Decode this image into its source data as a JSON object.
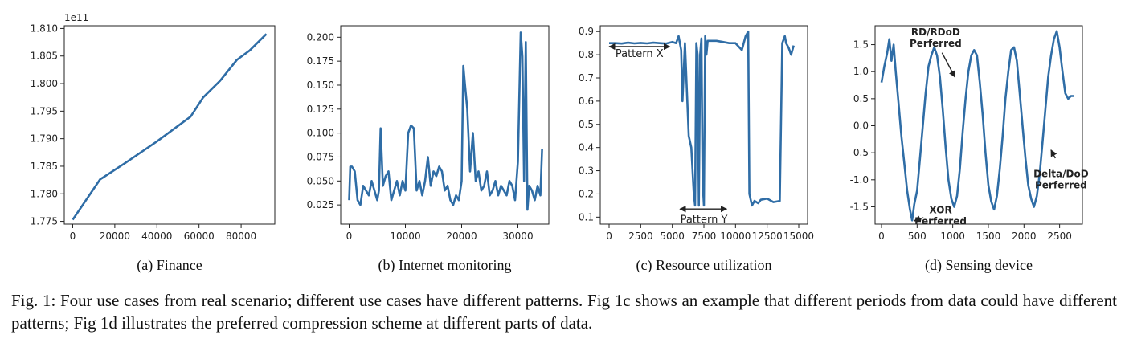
{
  "caption": "Fig. 1: Four use cases from real scenario; different use cases have different patterns. Fig 1c shows an example that different periods from data could have different patterns; Fig 1d illustrates the preferred compression scheme at different parts of data.",
  "line_color": "#2f6da6",
  "chart_data": [
    {
      "type": "line",
      "subcaption": "(a) Finance",
      "offset_label": "1e11",
      "xlim": [
        -4000,
        96000
      ],
      "ylim": [
        1.7745,
        1.8105
      ],
      "xticks": [
        0,
        20000,
        40000,
        60000,
        80000
      ],
      "yticks": [
        1.775,
        1.78,
        1.785,
        1.79,
        1.795,
        1.8,
        1.805,
        1.81
      ],
      "ytick_decimals": 3,
      "x": [
        0,
        13000,
        25000,
        40000,
        56000,
        62000,
        70000,
        78000,
        84000,
        92000
      ],
      "y": [
        1.7753,
        1.7826,
        1.7856,
        1.7895,
        1.794,
        1.7975,
        1.8005,
        1.8043,
        1.806,
        1.809
      ],
      "annotations": []
    },
    {
      "type": "line",
      "subcaption": "(b) Internet monitoring",
      "xlim": [
        -1500,
        35500
      ],
      "ylim": [
        0.005,
        0.212
      ],
      "xticks": [
        0,
        10000,
        20000,
        30000
      ],
      "yticks": [
        0.025,
        0.05,
        0.075,
        0.1,
        0.125,
        0.15,
        0.175,
        0.2
      ],
      "ytick_decimals": 3,
      "x": [
        0,
        200,
        500,
        1000,
        1500,
        2000,
        2500,
        3000,
        3500,
        4000,
        4500,
        5000,
        5300,
        5600,
        6000,
        6500,
        7000,
        7500,
        8000,
        8500,
        9000,
        9500,
        10000,
        10500,
        11000,
        11500,
        12000,
        12500,
        13000,
        13500,
        14000,
        14500,
        15000,
        15500,
        16000,
        16500,
        17000,
        17500,
        18000,
        18500,
        19000,
        19500,
        20000,
        20300,
        20600,
        21000,
        21500,
        22000,
        22500,
        23000,
        23500,
        24000,
        24500,
        25000,
        25500,
        26000,
        26500,
        27000,
        27500,
        28000,
        28500,
        29000,
        29500,
        30000,
        30500,
        30800,
        31100,
        31400,
        31700,
        32000,
        32500,
        33000,
        33500,
        34000,
        34300
      ],
      "y": [
        0.03,
        0.065,
        0.065,
        0.06,
        0.03,
        0.025,
        0.045,
        0.04,
        0.035,
        0.05,
        0.04,
        0.03,
        0.04,
        0.105,
        0.045,
        0.055,
        0.06,
        0.03,
        0.04,
        0.05,
        0.035,
        0.05,
        0.04,
        0.1,
        0.108,
        0.105,
        0.04,
        0.05,
        0.035,
        0.05,
        0.075,
        0.045,
        0.06,
        0.055,
        0.065,
        0.06,
        0.04,
        0.045,
        0.03,
        0.025,
        0.035,
        0.03,
        0.05,
        0.17,
        0.15,
        0.125,
        0.06,
        0.1,
        0.05,
        0.06,
        0.04,
        0.045,
        0.06,
        0.035,
        0.04,
        0.05,
        0.035,
        0.045,
        0.04,
        0.035,
        0.05,
        0.045,
        0.03,
        0.07,
        0.205,
        0.18,
        0.05,
        0.195,
        0.02,
        0.045,
        0.04,
        0.03,
        0.045,
        0.035,
        0.083
      ],
      "annotations": []
    },
    {
      "type": "line",
      "subcaption": "(c) Resource utilization",
      "xlim": [
        -700,
        15700
      ],
      "ylim": [
        0.07,
        0.925
      ],
      "xticks": [
        0,
        2500,
        5000,
        7500,
        10000,
        12500,
        15000
      ],
      "xtick_labels": [
        "0",
        "2500",
        "5000",
        "7500",
        "10000",
        "12500",
        "15000"
      ],
      "yticks": [
        0.1,
        0.2,
        0.3,
        0.4,
        0.5,
        0.6,
        0.7,
        0.8,
        0.9
      ],
      "ytick_decimals": 1,
      "x": [
        0,
        500,
        1000,
        1500,
        2000,
        2500,
        3000,
        3500,
        4000,
        4500,
        5000,
        5300,
        5500,
        5700,
        5800,
        6000,
        6300,
        6500,
        6700,
        6800,
        6900,
        7000,
        7100,
        7200,
        7300,
        7400,
        7500,
        7600,
        7700,
        7800,
        8000,
        8500,
        9000,
        9500,
        10000,
        10500,
        10800,
        11000,
        11100,
        11300,
        11500,
        11800,
        12000,
        12500,
        13000,
        13500,
        13700,
        13900,
        14000,
        14200,
        14400,
        14600
      ],
      "y": [
        0.85,
        0.85,
        0.848,
        0.852,
        0.849,
        0.851,
        0.849,
        0.852,
        0.85,
        0.848,
        0.855,
        0.85,
        0.88,
        0.82,
        0.6,
        0.85,
        0.45,
        0.4,
        0.2,
        0.15,
        0.85,
        0.8,
        0.15,
        0.8,
        0.87,
        0.25,
        0.15,
        0.88,
        0.8,
        0.86,
        0.86,
        0.86,
        0.855,
        0.85,
        0.85,
        0.82,
        0.88,
        0.9,
        0.2,
        0.15,
        0.17,
        0.16,
        0.175,
        0.18,
        0.165,
        0.17,
        0.85,
        0.88,
        0.85,
        0.83,
        0.8,
        0.84
      ],
      "annotations": [
        {
          "text": "Pattern X",
          "x": 2400,
          "y": 0.79,
          "arrow_from": 0,
          "arrow_to": 4800,
          "arrow_y": 0.835
        },
        {
          "text": "Pattern Y",
          "x": 7500,
          "y": 0.075,
          "arrow_from": 5600,
          "arrow_to": 9300,
          "arrow_y": 0.135
        }
      ]
    },
    {
      "type": "line",
      "subcaption": "(d) Sensing device",
      "xlim": [
        -90,
        2820
      ],
      "ylim": [
        -1.82,
        1.85
      ],
      "xticks": [
        0,
        500,
        1000,
        1500,
        2000,
        2500
      ],
      "yticks": [
        -1.5,
        -1.0,
        -0.5,
        0.0,
        0.5,
        1.0,
        1.5
      ],
      "ytick_decimals": 1,
      "x": [
        0,
        40,
        80,
        110,
        140,
        170,
        200,
        240,
        280,
        320,
        360,
        400,
        430,
        460,
        500,
        540,
        580,
        620,
        660,
        700,
        740,
        780,
        820,
        860,
        900,
        940,
        980,
        1020,
        1060,
        1100,
        1140,
        1180,
        1220,
        1260,
        1300,
        1340,
        1380,
        1420,
        1460,
        1500,
        1540,
        1580,
        1620,
        1660,
        1700,
        1740,
        1780,
        1820,
        1860,
        1900,
        1940,
        1980,
        2020,
        2060,
        2100,
        2140,
        2180,
        2220,
        2260,
        2300,
        2340,
        2380,
        2420,
        2460,
        2500,
        2540,
        2580,
        2620,
        2660,
        2700
      ],
      "y": [
        0.8,
        1.1,
        1.35,
        1.6,
        1.2,
        1.5,
        1.0,
        0.4,
        -0.2,
        -0.7,
        -1.2,
        -1.55,
        -1.75,
        -1.45,
        -1.2,
        -0.6,
        0.0,
        0.6,
        1.1,
        1.3,
        1.45,
        1.3,
        0.9,
        0.3,
        -0.4,
        -1.0,
        -1.35,
        -1.5,
        -1.3,
        -0.8,
        -0.1,
        0.5,
        1.0,
        1.3,
        1.4,
        1.3,
        0.8,
        0.2,
        -0.5,
        -1.1,
        -1.4,
        -1.55,
        -1.3,
        -0.8,
        -0.2,
        0.5,
        1.0,
        1.4,
        1.45,
        1.2,
        0.6,
        0.0,
        -0.6,
        -1.1,
        -1.35,
        -1.5,
        -1.3,
        -0.9,
        -0.3,
        0.3,
        0.9,
        1.3,
        1.6,
        1.75,
        1.45,
        1.0,
        0.6,
        0.5,
        0.55,
        0.55
      ],
      "annotations": [
        {
          "text": "RD/RDoD",
          "text2": "Perferred",
          "x": 760,
          "y": 1.67,
          "arrow_from_x": 850,
          "arrow_from_y": 1.35,
          "arrow_to_x": 1030,
          "arrow_to_y": 0.9
        },
        {
          "text": "Delta/DoD",
          "text2": "Perferred",
          "x": 2520,
          "y": -0.95,
          "arrow_from_x": 2440,
          "arrow_from_y": -0.6,
          "arrow_to_x": 2380,
          "arrow_to_y": -0.45
        },
        {
          "text": "XOR",
          "text2": "Perferred",
          "x": 830,
          "y": -1.62,
          "arrow_from_x": 590,
          "arrow_from_y": -1.7,
          "arrow_to_x": 460,
          "arrow_to_y": -1.76
        }
      ]
    }
  ]
}
